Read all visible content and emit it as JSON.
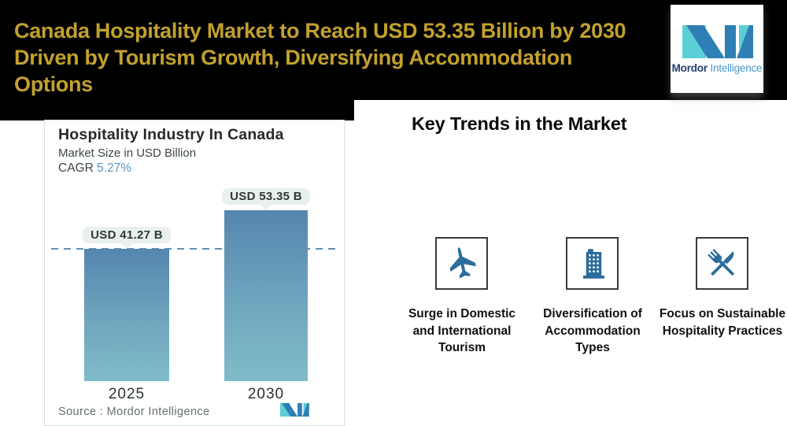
{
  "header": {
    "title_line1": "Canada Hospitality Market to Reach USD 53.35 Billion by 2030",
    "title_line2": "Driven by Tourism Growth, Diversifying Accommodation Options",
    "title_color": "#C2A12D",
    "background_color": "#000000"
  },
  "brand": {
    "name_bold": "Mordor",
    "name_light": "Intelligence",
    "logo_teal": "#5BCFD6",
    "logo_blue": "#2E7FB5",
    "wordmark_navy": "#253C72",
    "wordmark_light_blue": "#4A97CD"
  },
  "chart_card": {
    "title": "Hospitality Industry In Canada",
    "subtitle": "Market Size in USD Billion",
    "cagr_label": "CAGR",
    "cagr_value": "5.27%",
    "cagr_value_color": "#5A94C0",
    "source_text": "Source :  Mordor Intelligence"
  },
  "chart_data": {
    "type": "bar",
    "categories": [
      "2025",
      "2030"
    ],
    "values": [
      41.27,
      53.35
    ],
    "value_labels": [
      "USD 41.27 B",
      "USD 53.35 B"
    ],
    "unit": "USD Billion",
    "title": "Hospitality Industry In Canada",
    "ylabel": "Market Size in USD Billion",
    "cagr": "5.27%",
    "reference_line_value": 41.27,
    "bar_gradient_top": "#5586AE",
    "bar_gradient_bottom": "#7FBCC8",
    "dashed_line_color": "#6090BA",
    "label_pill_bg": "#EAF0EB",
    "grid": false,
    "legend": false
  },
  "key_trends": {
    "heading": "Key Trends in the Market",
    "icon_color": "#2A6D9B",
    "items": [
      {
        "icon": "airplane-icon",
        "label": "Surge in Domestic and International Tourism",
        "lines": [
          "Surge in Domestic",
          "and International",
          "Tourism"
        ]
      },
      {
        "icon": "building-icon",
        "label": "Diversification of Accommodation Types",
        "lines": [
          "Diversification of",
          "Accommodation",
          "Types"
        ]
      },
      {
        "icon": "fork-knife-icon",
        "label": "Focus on Sustainable Hospitality Practices",
        "lines": [
          "Focus on Sustainable",
          "Hospitality Practices"
        ]
      }
    ]
  }
}
